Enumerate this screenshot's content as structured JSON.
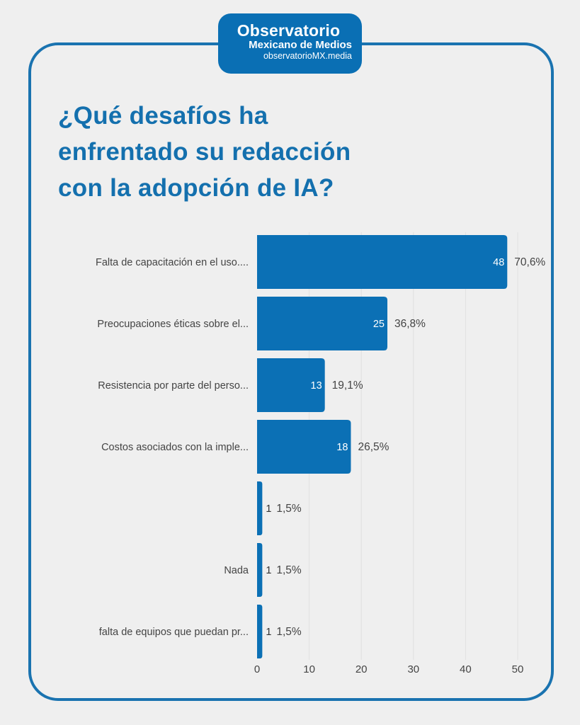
{
  "logo": {
    "line1": "Observatorio",
    "line2": "Mexicano de Medios",
    "line3": "observatorioMX.media"
  },
  "colors": {
    "accent": "#0a6fb4",
    "bar": "#0b70b5",
    "frame": "#1a73b0",
    "background": "#efefef",
    "gridline": "#e0e0e0"
  },
  "chart_data": {
    "type": "bar",
    "orientation": "horizontal",
    "title": "¿Qué desafíos ha enfrentado su redacción con la adopción de IA?",
    "title_lines": [
      "¿Qué desafíos ha",
      "enfrentado su redacción",
      "con la adopción de IA?"
    ],
    "categories": [
      "Falta de capacitación en el uso....",
      "Preocupaciones éticas sobre el...",
      "Resistencia por parte del perso...",
      "Costos asociados con la imple...",
      "",
      "Nada",
      "falta de equipos que puedan pr..."
    ],
    "values": [
      48,
      25,
      13,
      18,
      1,
      1,
      1
    ],
    "percent_labels": [
      "70,6%",
      "36,8%",
      "19,1%",
      "26,5%",
      "1,5%",
      "1,5%",
      "1,5%"
    ],
    "xlabel": "",
    "ylabel": "",
    "xlim": [
      0,
      50
    ],
    "xticks": [
      "0",
      "10",
      "20",
      "30",
      "40",
      "50"
    ],
    "xtick_values": [
      0,
      10,
      20,
      30,
      40,
      50
    ],
    "grid": true,
    "legend": "none"
  }
}
